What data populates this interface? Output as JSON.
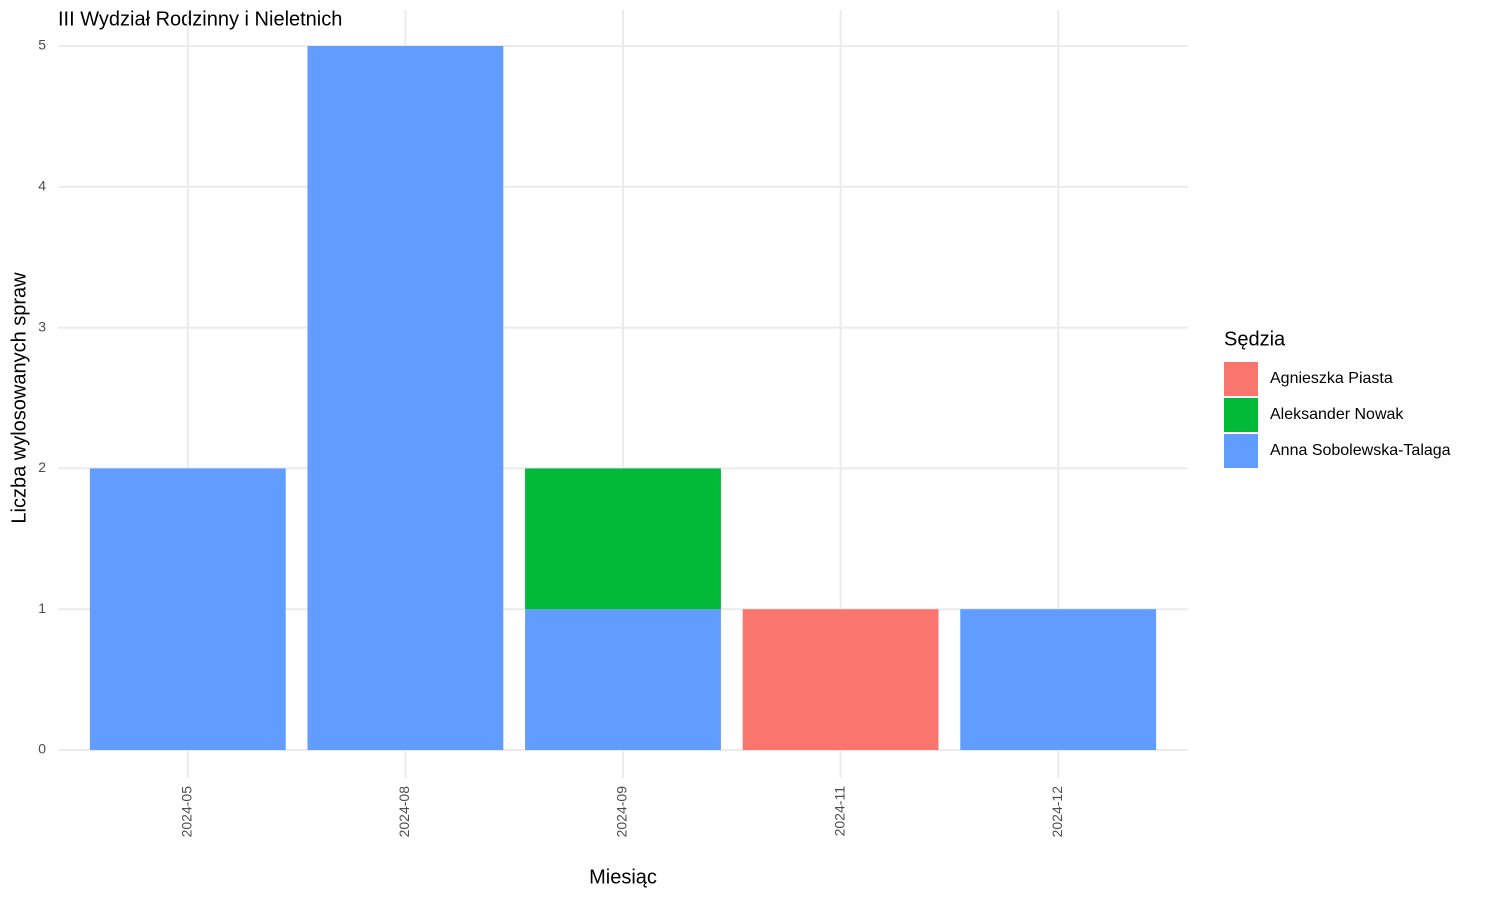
{
  "chart_data": {
    "type": "bar",
    "stacked": true,
    "title": "III Wydział Rodzinny i Nieletnich",
    "x_label": "Miesiąc",
    "y_label": "Liczba wylosowanych spraw",
    "legend_title": "Sędzia",
    "legend_position": "right",
    "categories": [
      "2024-05",
      "2024-08",
      "2024-09",
      "2024-11",
      "2024-12"
    ],
    "series": [
      {
        "name": "Agnieszka Piasta",
        "color": "#f8766d",
        "values": [
          null,
          null,
          null,
          1,
          null
        ]
      },
      {
        "name": "Aleksander Nowak",
        "color": "#00ba38",
        "values": [
          null,
          null,
          1,
          null,
          null
        ]
      },
      {
        "name": "Anna Sobolewska-Talaga",
        "color": "#619cff",
        "values": [
          2,
          5,
          1,
          null,
          1
        ]
      }
    ],
    "ylim": [
      0,
      5
    ],
    "yticks": [
      0,
      1,
      2,
      3,
      4,
      5
    ],
    "grid": true
  }
}
